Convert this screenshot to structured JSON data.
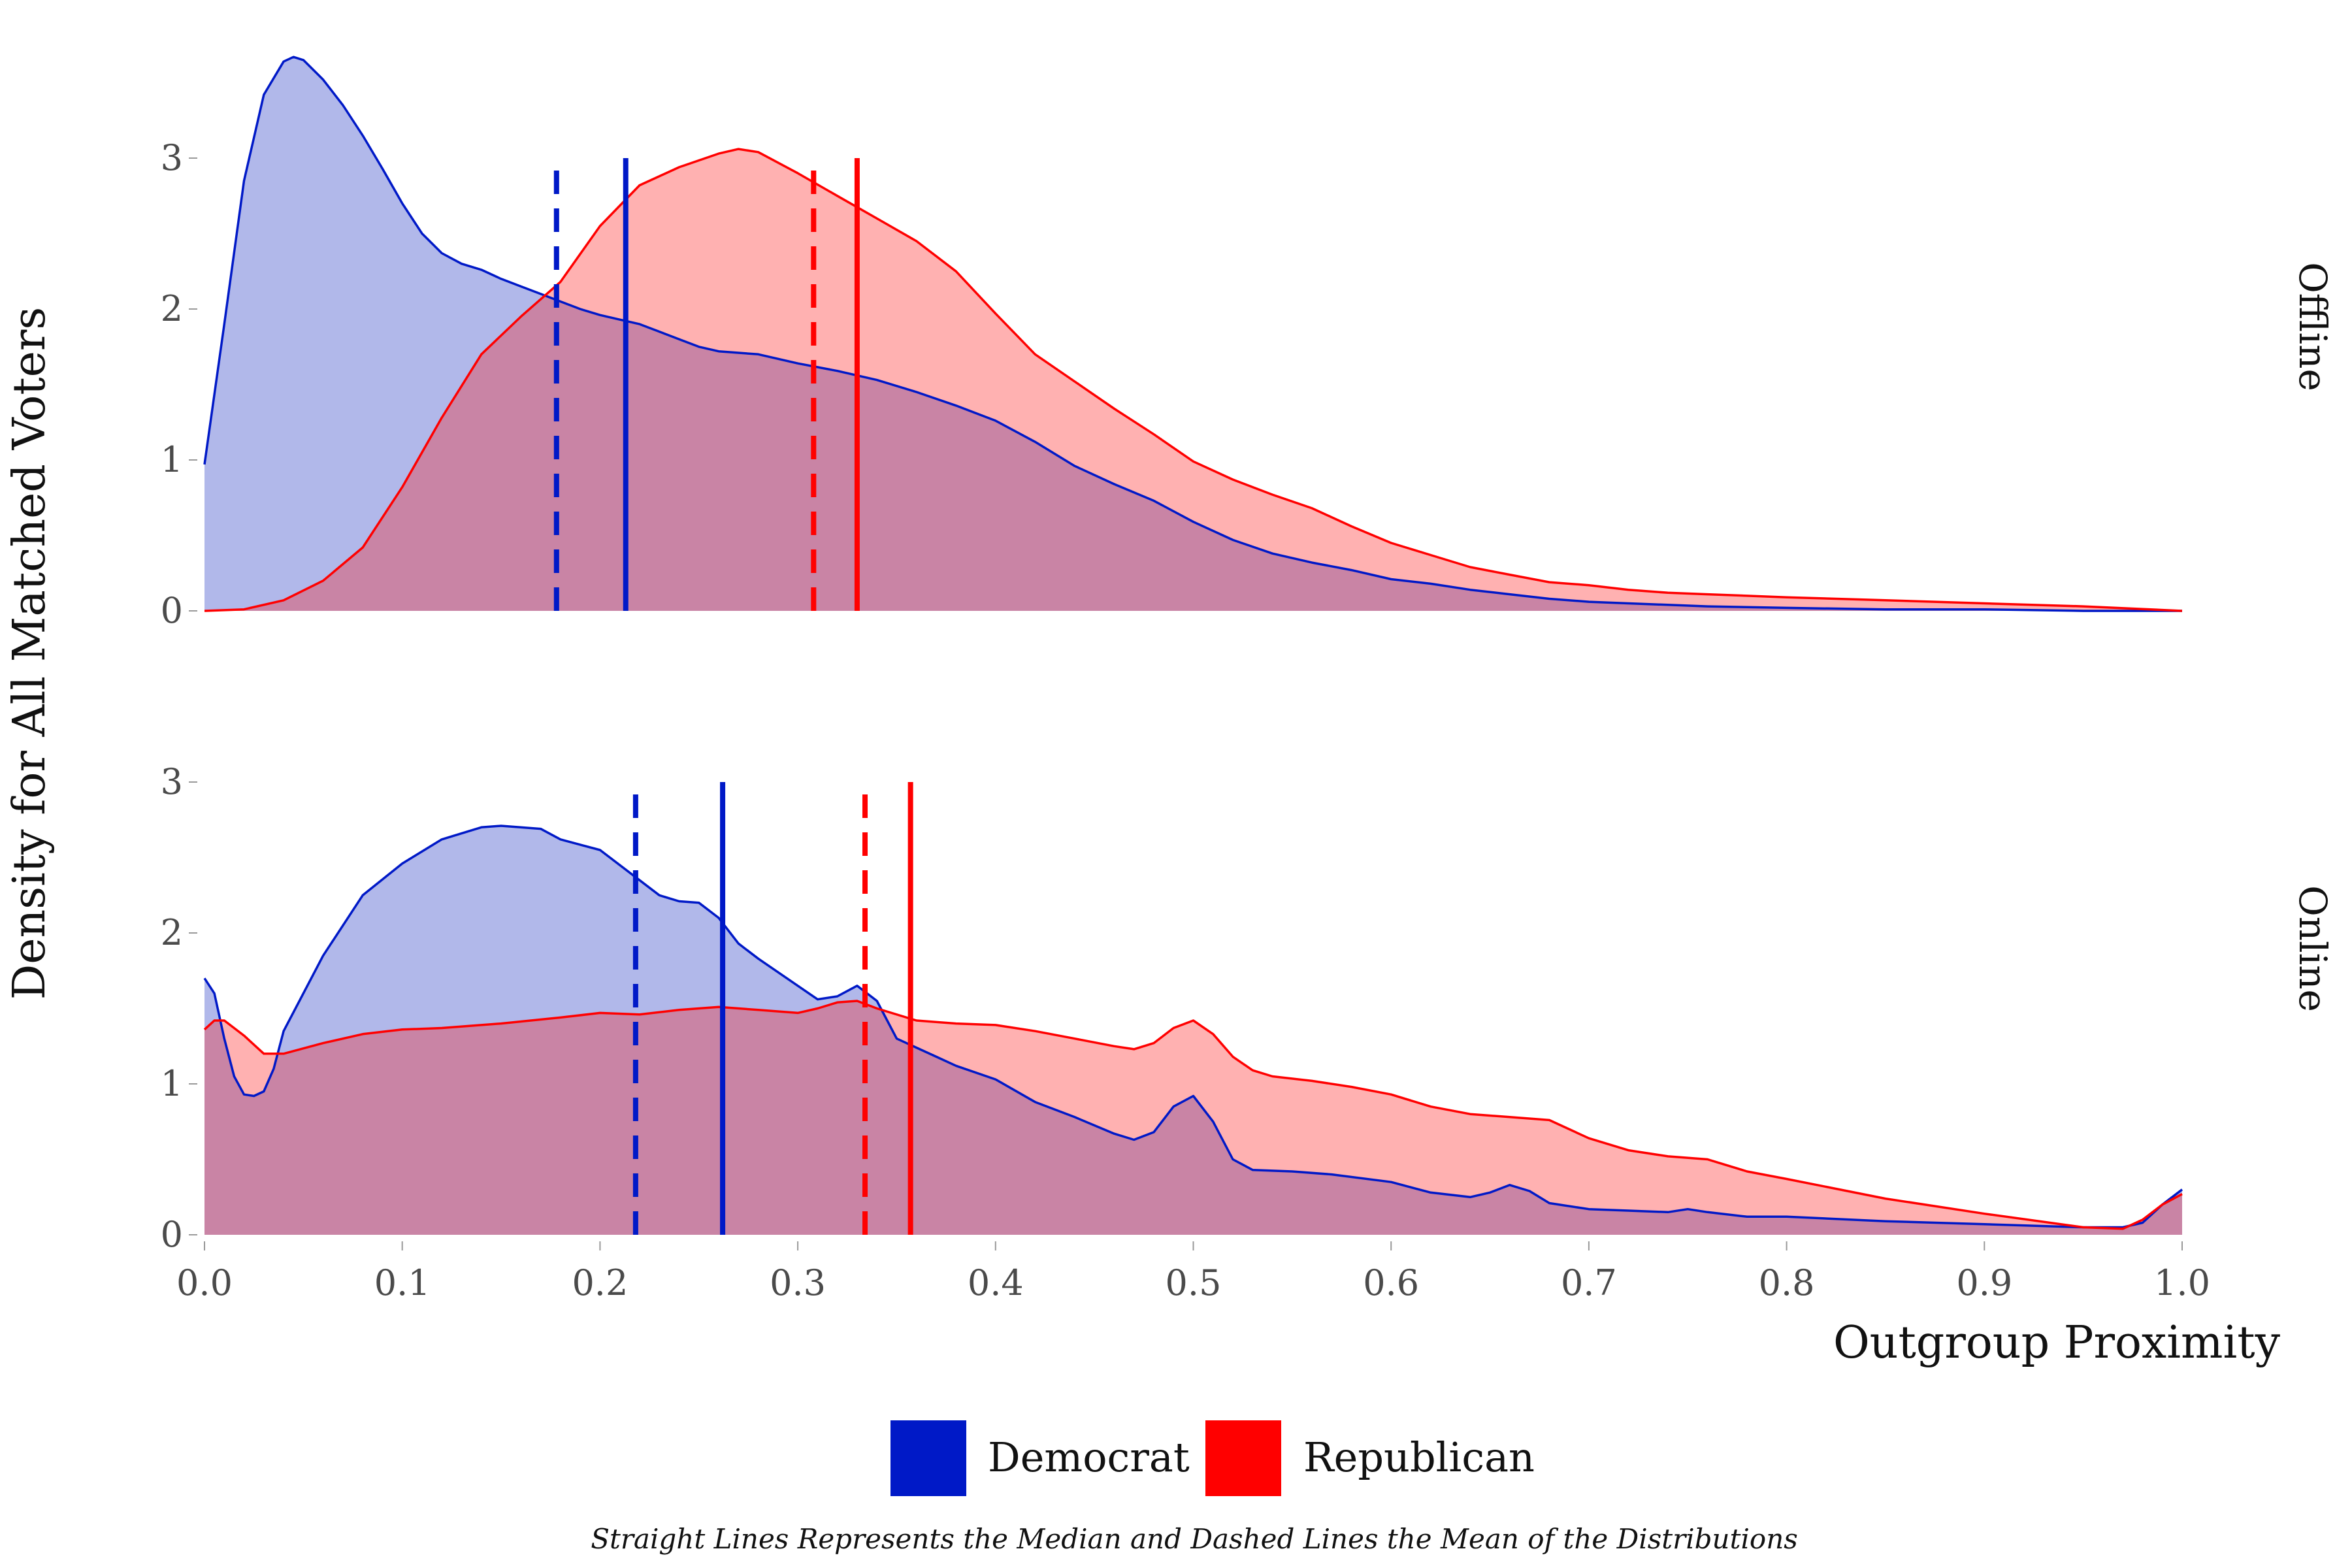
{
  "chart_data": {
    "type": "area",
    "xlabel": "Outgroup Proximity",
    "ylabel": "Density for All Matched Voters",
    "xlim": [
      0,
      1
    ],
    "x_ticks": [
      "0.0",
      "0.1",
      "0.2",
      "0.3",
      "0.4",
      "0.5",
      "0.6",
      "0.7",
      "0.8",
      "0.9",
      "1.0"
    ],
    "y_ticks": [
      "0",
      "1",
      "2",
      "3"
    ],
    "legend": {
      "position": "bottom",
      "entries": [
        {
          "name": "Democrat",
          "color": "#0019c7"
        },
        {
          "name": "Republican",
          "color": "#ff0000"
        }
      ]
    },
    "caption": "Straight Lines Represents the Median and Dashed Lines the Mean of the Distributions",
    "grid": false,
    "fill_colors": {
      "Democrat": "#b1b8ea",
      "Republican": "#ffb1b1",
      "overlap": "#c984a5"
    },
    "panels": [
      {
        "name": "Offline",
        "ylim": [
          0,
          3.7
        ],
        "series": [
          {
            "name": "Democrat",
            "x": [
              0,
              0.01,
              0.02,
              0.03,
              0.04,
              0.045,
              0.05,
              0.06,
              0.07,
              0.08,
              0.09,
              0.1,
              0.11,
              0.12,
              0.13,
              0.14,
              0.15,
              0.16,
              0.17,
              0.18,
              0.19,
              0.2,
              0.21,
              0.22,
              0.23,
              0.24,
              0.25,
              0.26,
              0.27,
              0.28,
              0.3,
              0.32,
              0.34,
              0.36,
              0.38,
              0.4,
              0.42,
              0.44,
              0.46,
              0.48,
              0.5,
              0.52,
              0.54,
              0.56,
              0.58,
              0.6,
              0.62,
              0.64,
              0.66,
              0.68,
              0.7,
              0.72,
              0.74,
              0.76,
              0.8,
              0.85,
              0.9,
              0.95,
              1.0
            ],
            "y": [
              0.97,
              1.9,
              2.85,
              3.42,
              3.64,
              3.67,
              3.65,
              3.52,
              3.35,
              3.15,
              2.93,
              2.7,
              2.5,
              2.37,
              2.3,
              2.26,
              2.2,
              2.15,
              2.1,
              2.05,
              2.0,
              1.96,
              1.93,
              1.9,
              1.85,
              1.8,
              1.75,
              1.72,
              1.71,
              1.7,
              1.64,
              1.59,
              1.53,
              1.45,
              1.36,
              1.26,
              1.12,
              0.96,
              0.84,
              0.73,
              0.59,
              0.47,
              0.38,
              0.32,
              0.27,
              0.21,
              0.18,
              0.14,
              0.11,
              0.08,
              0.06,
              0.05,
              0.04,
              0.03,
              0.02,
              0.01,
              0.01,
              0.0,
              0.0
            ],
            "mean": 0.178,
            "median": 0.213
          },
          {
            "name": "Republican",
            "x": [
              0,
              0.02,
              0.04,
              0.06,
              0.08,
              0.1,
              0.12,
              0.14,
              0.16,
              0.18,
              0.2,
              0.22,
              0.24,
              0.26,
              0.27,
              0.28,
              0.3,
              0.32,
              0.34,
              0.36,
              0.38,
              0.4,
              0.42,
              0.44,
              0.46,
              0.48,
              0.5,
              0.52,
              0.54,
              0.56,
              0.58,
              0.6,
              0.62,
              0.64,
              0.66,
              0.68,
              0.7,
              0.72,
              0.74,
              0.76,
              0.78,
              0.8,
              0.85,
              0.9,
              0.95,
              1.0
            ],
            "y": [
              0.0,
              0.01,
              0.07,
              0.2,
              0.42,
              0.82,
              1.28,
              1.7,
              1.95,
              2.18,
              2.55,
              2.82,
              2.94,
              3.03,
              3.06,
              3.04,
              2.9,
              2.75,
              2.6,
              2.45,
              2.25,
              1.97,
              1.7,
              1.52,
              1.34,
              1.17,
              0.99,
              0.87,
              0.77,
              0.68,
              0.56,
              0.45,
              0.37,
              0.29,
              0.24,
              0.19,
              0.17,
              0.14,
              0.12,
              0.11,
              0.1,
              0.09,
              0.07,
              0.05,
              0.03,
              0.0
            ],
            "mean": 0.308,
            "median": 0.33
          }
        ]
      },
      {
        "name": "Online",
        "ylim": [
          0,
          3.0
        ],
        "series": [
          {
            "name": "Democrat",
            "x": [
              0,
              0.005,
              0.01,
              0.015,
              0.02,
              0.025,
              0.03,
              0.035,
              0.04,
              0.06,
              0.08,
              0.1,
              0.12,
              0.14,
              0.15,
              0.17,
              0.18,
              0.2,
              0.22,
              0.23,
              0.24,
              0.25,
              0.26,
              0.27,
              0.28,
              0.3,
              0.31,
              0.32,
              0.33,
              0.34,
              0.35,
              0.37,
              0.38,
              0.4,
              0.42,
              0.44,
              0.46,
              0.47,
              0.48,
              0.49,
              0.5,
              0.51,
              0.52,
              0.53,
              0.55,
              0.57,
              0.6,
              0.62,
              0.64,
              0.65,
              0.66,
              0.67,
              0.68,
              0.7,
              0.72,
              0.74,
              0.75,
              0.76,
              0.78,
              0.8,
              0.85,
              0.9,
              0.95,
              0.97,
              0.98,
              0.99,
              1.0
            ],
            "y": [
              1.7,
              1.6,
              1.3,
              1.05,
              0.93,
              0.92,
              0.95,
              1.1,
              1.35,
              1.85,
              2.25,
              2.46,
              2.62,
              2.7,
              2.71,
              2.69,
              2.62,
              2.55,
              2.35,
              2.25,
              2.21,
              2.2,
              2.1,
              1.93,
              1.83,
              1.65,
              1.56,
              1.58,
              1.65,
              1.55,
              1.3,
              1.18,
              1.12,
              1.03,
              0.88,
              0.78,
              0.67,
              0.63,
              0.68,
              0.85,
              0.92,
              0.75,
              0.5,
              0.43,
              0.42,
              0.4,
              0.35,
              0.28,
              0.25,
              0.28,
              0.33,
              0.29,
              0.21,
              0.17,
              0.16,
              0.15,
              0.17,
              0.15,
              0.12,
              0.12,
              0.09,
              0.07,
              0.05,
              0.05,
              0.08,
              0.2,
              0.3
            ],
            "mean": 0.218,
            "median": 0.262
          },
          {
            "name": "Republican",
            "x": [
              0,
              0.005,
              0.01,
              0.02,
              0.03,
              0.04,
              0.06,
              0.08,
              0.1,
              0.12,
              0.15,
              0.18,
              0.2,
              0.22,
              0.24,
              0.25,
              0.26,
              0.28,
              0.3,
              0.31,
              0.32,
              0.33,
              0.34,
              0.36,
              0.38,
              0.4,
              0.42,
              0.44,
              0.46,
              0.47,
              0.48,
              0.49,
              0.5,
              0.51,
              0.52,
              0.53,
              0.54,
              0.56,
              0.58,
              0.6,
              0.62,
              0.64,
              0.66,
              0.68,
              0.7,
              0.72,
              0.74,
              0.76,
              0.78,
              0.8,
              0.85,
              0.9,
              0.95,
              0.97,
              0.98,
              0.99,
              1.0
            ],
            "y": [
              1.36,
              1.42,
              1.42,
              1.32,
              1.2,
              1.2,
              1.27,
              1.33,
              1.36,
              1.37,
              1.4,
              1.44,
              1.47,
              1.46,
              1.49,
              1.5,
              1.51,
              1.49,
              1.47,
              1.5,
              1.54,
              1.55,
              1.5,
              1.42,
              1.4,
              1.39,
              1.35,
              1.3,
              1.25,
              1.23,
              1.27,
              1.37,
              1.42,
              1.33,
              1.18,
              1.09,
              1.05,
              1.02,
              0.98,
              0.93,
              0.85,
              0.8,
              0.78,
              0.76,
              0.64,
              0.56,
              0.52,
              0.5,
              0.42,
              0.37,
              0.24,
              0.14,
              0.05,
              0.04,
              0.1,
              0.2,
              0.27
            ],
            "mean": 0.334,
            "median": 0.357
          }
        ]
      }
    ]
  }
}
